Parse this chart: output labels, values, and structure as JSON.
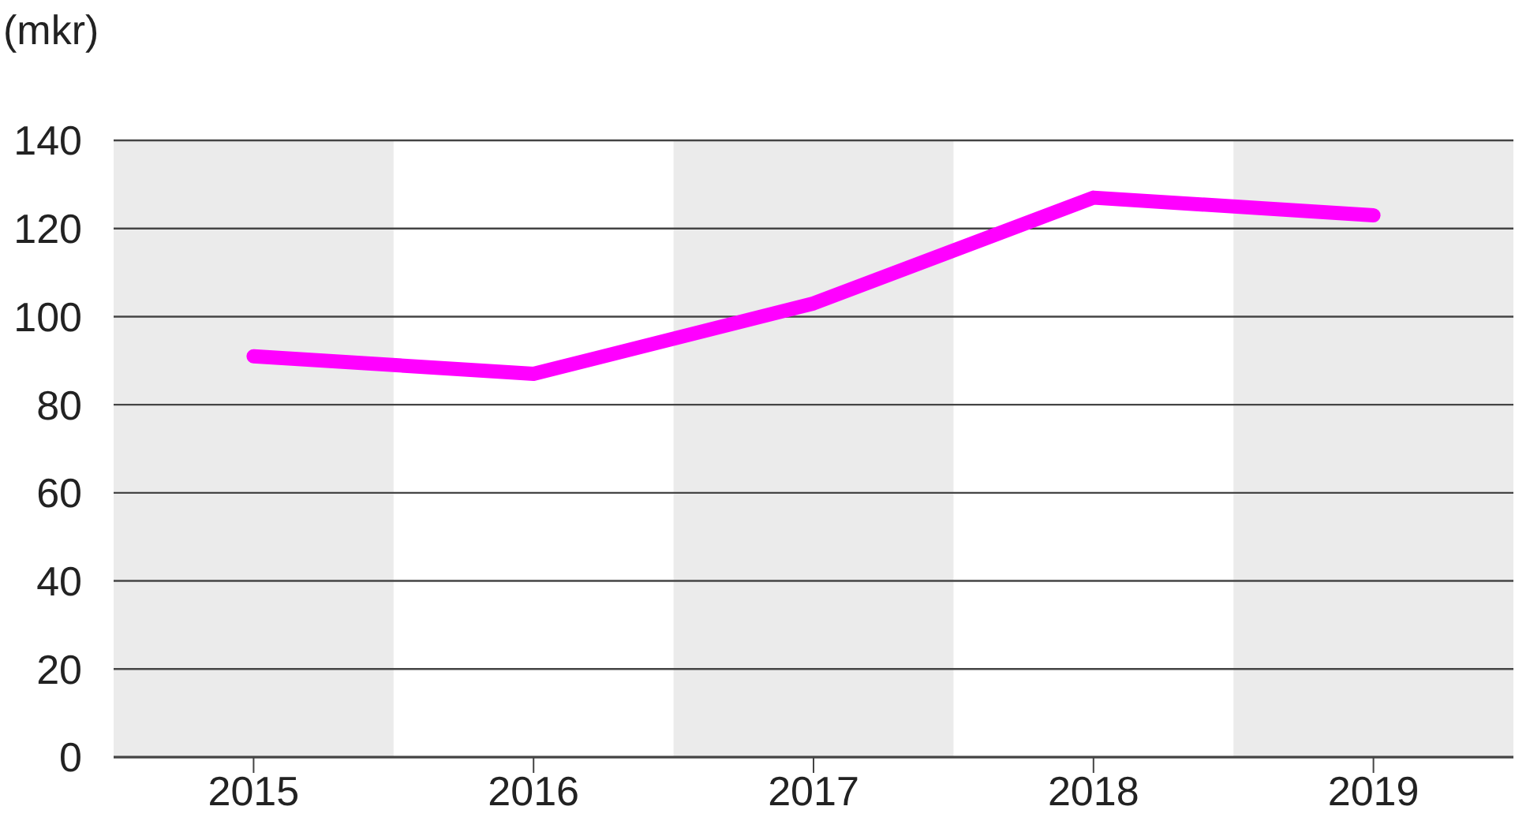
{
  "chart_data": {
    "type": "line",
    "ylabel": "(mkr)",
    "x": [
      2015,
      2016,
      2017,
      2018,
      2019
    ],
    "series": [
      {
        "color": "#ff00ff",
        "values": [
          91,
          87,
          103,
          127,
          123
        ]
      }
    ],
    "xlim": [
      2014.5,
      2019.5
    ],
    "xticks": [
      2015,
      2016,
      2017,
      2018,
      2019
    ],
    "ylim": [
      0,
      140
    ],
    "yticks": [
      0,
      20,
      40,
      60,
      80,
      100,
      120,
      140
    ],
    "bands": [
      {
        "axis": "x",
        "from": 2014.5,
        "to": 2015.5,
        "color": "#ebebeb"
      },
      {
        "axis": "x",
        "from": 2016.5,
        "to": 2017.5,
        "color": "#ebebeb"
      },
      {
        "axis": "x",
        "from": 2018.5,
        "to": 2019.5,
        "color": "#ebebeb"
      }
    ],
    "grid": "y",
    "marker": "none",
    "line_style": "solid"
  }
}
